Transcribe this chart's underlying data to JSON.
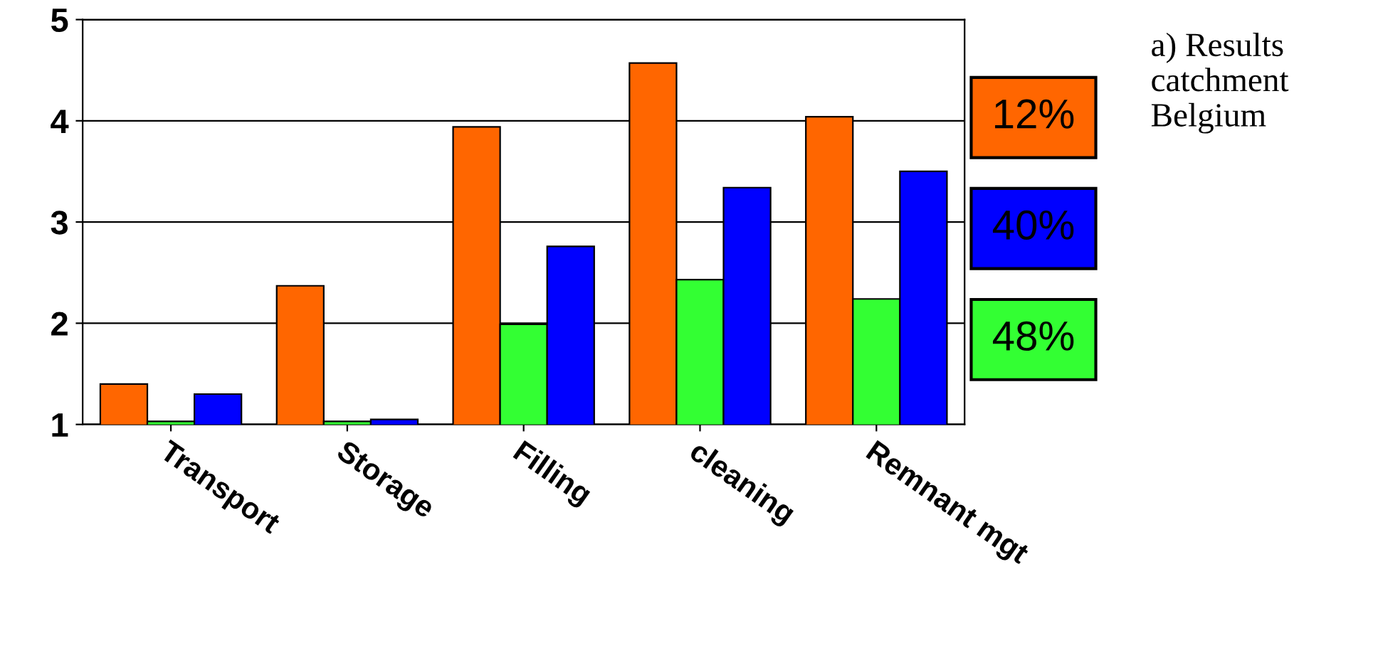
{
  "chart_data": {
    "type": "bar",
    "categories": [
      "Transport",
      "Storage",
      "Filling",
      "cleaning",
      "Remnant mgt"
    ],
    "series": [
      {
        "name": "12%",
        "color": "#ff6600",
        "values": [
          1.4,
          2.37,
          3.94,
          4.57,
          4.04
        ]
      },
      {
        "name": "48%",
        "color": "#33ff33",
        "values": [
          1.03,
          1.03,
          1.99,
          2.43,
          2.24
        ]
      },
      {
        "name": "40%",
        "color": "#0000ff",
        "values": [
          1.3,
          1.05,
          2.76,
          3.34,
          3.5
        ]
      }
    ],
    "ylim": [
      1,
      5
    ],
    "yticks": [
      1,
      2,
      3,
      4,
      5
    ],
    "grid": "y",
    "legend": "right",
    "annotations": [
      "a) Results\ncatchment\nBelgium"
    ]
  }
}
